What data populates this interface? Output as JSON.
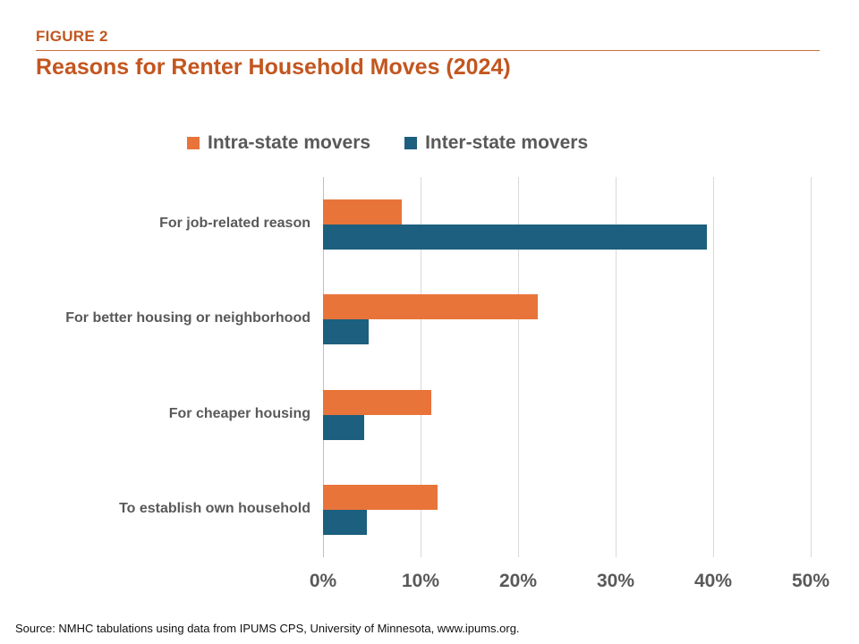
{
  "header": {
    "figure_label": "FIGURE 2",
    "title": "Reasons for Renter Household Moves (2024)"
  },
  "legend": [
    {
      "label": "Intra-state movers",
      "color": "#e8743a"
    },
    {
      "label": "Inter-state movers",
      "color": "#1c5f7e"
    }
  ],
  "chart_data": {
    "type": "bar",
    "orientation": "horizontal",
    "title": "Reasons for Renter Household Moves (2024)",
    "categories": [
      "For job-related reason",
      "For better housing or neighborhood",
      "For cheaper housing",
      "To establish own household"
    ],
    "series": [
      {
        "name": "Intra-state movers",
        "color": "#e8743a",
        "values": [
          8.1,
          22.0,
          11.1,
          11.7
        ]
      },
      {
        "name": "Inter-state movers",
        "color": "#1c5f7e",
        "values": [
          39.4,
          4.7,
          4.2,
          4.5
        ]
      }
    ],
    "xlim": [
      0,
      50
    ],
    "x_ticks": [
      "0%",
      "10%",
      "20%",
      "30%",
      "40%",
      "50%"
    ],
    "grid": true,
    "legend_position": "top",
    "unit": "percent"
  },
  "source": "Source: NMHC tabulations using data from IPUMS CPS, University of Minnesota, www.ipums.org."
}
